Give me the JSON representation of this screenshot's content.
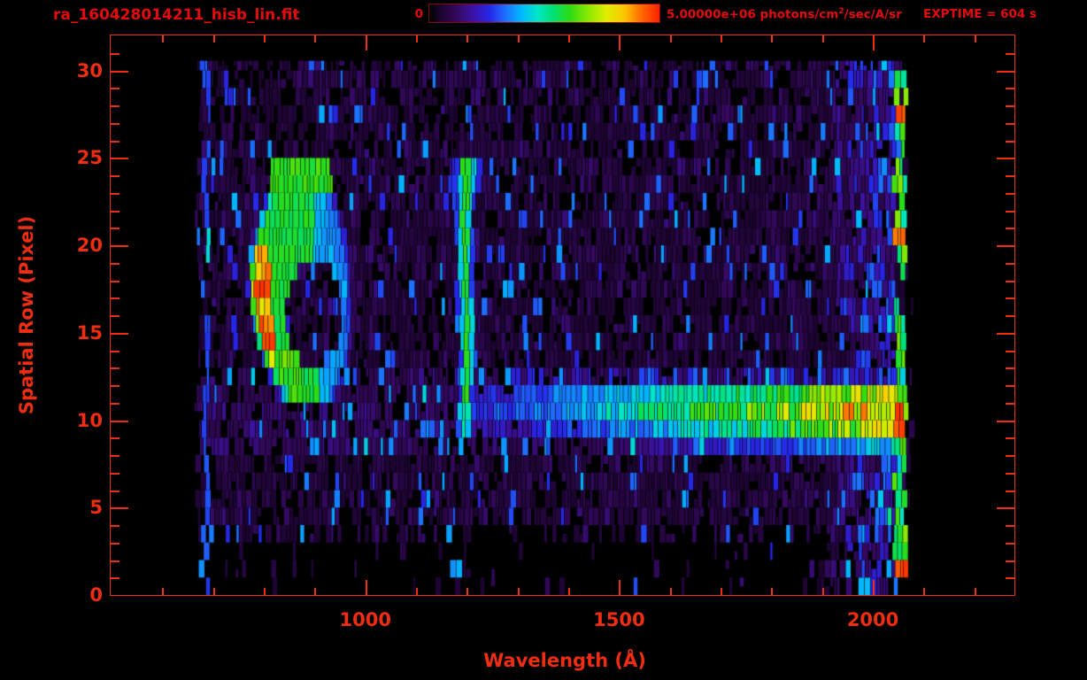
{
  "header": {
    "title": "ra_160428014211_hisb_lin.fit",
    "exptime": "EXPTIME = 604 s",
    "colorbar": {
      "min_label": "0",
      "max_label_prefix": "5.00000e+06 photons/cm",
      "max_label_sup": "2",
      "max_label_suffix": "/sec/A/sr"
    }
  },
  "chart_data": {
    "type": "heatmap",
    "title": "ra_160428014211_hisb_lin.fit",
    "xlabel": "Wavelength (Å)",
    "ylabel": "Spatial Row (Pixel)",
    "xlim": [
      498,
      2279
    ],
    "ylim": [
      0,
      32
    ],
    "x_major_ticks": [
      1000,
      1500,
      2000
    ],
    "x_minor_step": 100,
    "x_minor_range": [
      600,
      2200
    ],
    "y_major_ticks": [
      0,
      5,
      10,
      15,
      20,
      25,
      30
    ],
    "y_minor_step": 1,
    "colorbar": {
      "min": 0,
      "max": 5000000,
      "units": "photons/cm^2/sec/A/sr"
    },
    "exptime_seconds": 604,
    "background": "#000000",
    "axis_color": "#ee2d12",
    "title_color": "#e30b0b",
    "colormap": [
      [
        0.0,
        "#000000"
      ],
      [
        0.05,
        "#1c0430"
      ],
      [
        0.12,
        "#34095e"
      ],
      [
        0.19,
        "#3c12a6"
      ],
      [
        0.26,
        "#2626e6"
      ],
      [
        0.33,
        "#1e6eff"
      ],
      [
        0.4,
        "#00b8ff"
      ],
      [
        0.47,
        "#00e6c8"
      ],
      [
        0.54,
        "#00e070"
      ],
      [
        0.61,
        "#2cdc14"
      ],
      [
        0.69,
        "#8ae800"
      ],
      [
        0.77,
        "#e0ee00"
      ],
      [
        0.85,
        "#ffc400"
      ],
      [
        0.92,
        "#ff6a00"
      ],
      [
        1.0,
        "#ff2000"
      ]
    ],
    "data_extent": {
      "wavelength_A": [
        660,
        2066
      ],
      "rows": [
        0,
        30.5
      ]
    },
    "features": {
      "background_noise": {
        "rows": [
          0,
          30.5
        ],
        "wavelength_A": [
          660,
          2066
        ],
        "typical_level": 0.1,
        "row_density": [
          [
            2.5,
            0.1
          ],
          [
            3.5,
            0.5
          ],
          [
            8.5,
            0.85
          ],
          [
            12.6,
            0.92
          ],
          [
            25,
            0.88
          ],
          [
            29,
            0.82
          ],
          [
            31,
            0.78
          ]
        ]
      },
      "left_emission_line": {
        "wavelength_A": 688,
        "rows": [
          0,
          30.5
        ],
        "level": 0.27,
        "bright_rows": [
          18.8,
          21.0
        ],
        "bright_level": 0.45,
        "wobble_A": 5
      },
      "ring_feature": {
        "center_wavelength_A": 873,
        "center_row": 17.4,
        "rx_A": 97,
        "ry_rows": 6.8,
        "hole": {
          "wavelength_A": 900,
          "row": 16,
          "rx_A": 55,
          "ry_rows": 3.2
        },
        "left_edge_level": 0.95,
        "hot_rows": [
          14.2,
          17.3
        ],
        "body_level": 0.58,
        "right_level": 0.45,
        "top_blob": {
          "rows": [
            22.9,
            24.7
          ],
          "wavelength_A": [
            815,
            935
          ],
          "level": 0.58
        }
      },
      "lyman_alpha_line": {
        "wavelength_A": 1199,
        "rows": [
          8.6,
          24.8
        ],
        "core_level": 0.57,
        "core_halfwidth_A": 6,
        "halo_halfwidth_A": 18,
        "wobble_A": 3
      },
      "horizontal_streak": {
        "rows": [
          7.6,
          12.6
        ],
        "wavelength_A": [
          1205,
          2052
        ],
        "level_start": 0.25,
        "level_end": 0.8,
        "red_tip": {
          "wavelength_A": [
            2046,
            2063
          ],
          "rows": [
            8.7,
            11.5
          ],
          "level": 0.93
        }
      },
      "right_noise_band": {
        "wavelength_A": [
          1890,
          2046
        ],
        "level": 0.45
      },
      "right_edge_column": {
        "wavelength_A": [
          2043,
          2066
        ],
        "rows": [
          0.7,
          30.4
        ],
        "level": 0.6,
        "red_rows": [
          1.15,
          9.9,
          20.55,
          27.9
        ]
      }
    }
  }
}
